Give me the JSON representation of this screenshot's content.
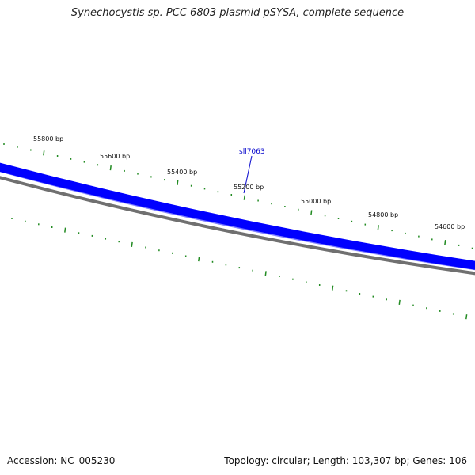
{
  "title": "Synechocystis sp. PCC 6803 plasmid pSYSA, complete sequence",
  "footer": {
    "accession": "Accession: NC_005230",
    "summary": "Topology: circular; Length: 103,307 bp; Genes: 106"
  },
  "ruler_labels": [
    "55800 bp",
    "55600 bp",
    "55400 bp",
    "55200 bp",
    "55000 bp",
    "54800 bp",
    "54600 bp"
  ],
  "genes": [
    {
      "name": "sll7063",
      "color": "#0000cc"
    }
  ],
  "colors": {
    "feature_band": "#0000ff",
    "feature_highlight": "#8080ff",
    "backbone": "#808080",
    "tick": "#228B22"
  }
}
